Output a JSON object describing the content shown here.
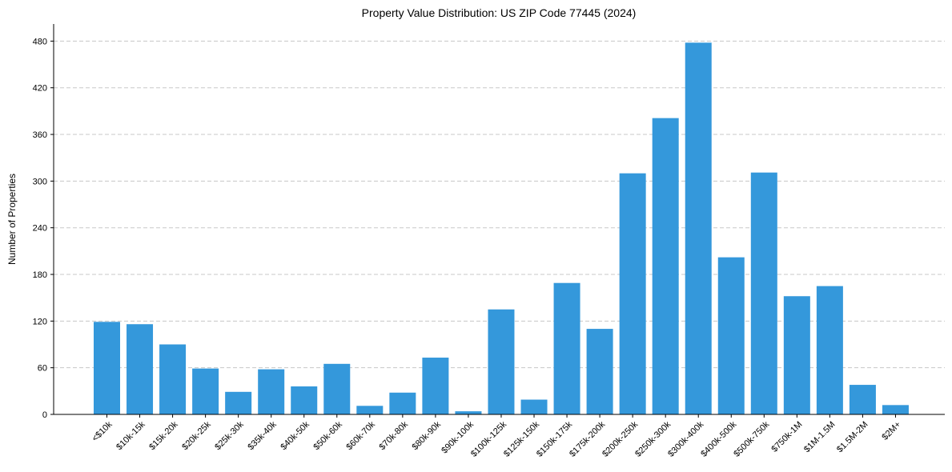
{
  "chart_data": {
    "type": "bar",
    "title": "Property Value Distribution: US ZIP Code 77445 (2024)",
    "xlabel": "",
    "ylabel": "Number of Properties",
    "categories": [
      "<$10k",
      "$10k-15k",
      "$15k-20k",
      "$20k-25k",
      "$25k-30k",
      "$35k-40k",
      "$40k-50k",
      "$50k-60k",
      "$60k-70k",
      "$70k-80k",
      "$80k-90k",
      "$90k-100k",
      "$100k-125k",
      "$125k-150k",
      "$150k-175k",
      "$175k-200k",
      "$200k-250k",
      "$250k-300k",
      "$300k-400k",
      "$400k-500k",
      "$500k-750k",
      "$750k-1M",
      "$1M-1.5M",
      "$1.5M-2M",
      "$2M+"
    ],
    "values": [
      119,
      116,
      90,
      59,
      29,
      58,
      36,
      65,
      11,
      28,
      73,
      4,
      135,
      19,
      169,
      110,
      310,
      381,
      478,
      202,
      311,
      152,
      165,
      38,
      12
    ],
    "yticks": [
      0,
      60,
      120,
      180,
      240,
      300,
      360,
      420,
      480
    ],
    "ylim": [
      0,
      502
    ],
    "grid": "y-dashed",
    "color": "#3498db"
  }
}
